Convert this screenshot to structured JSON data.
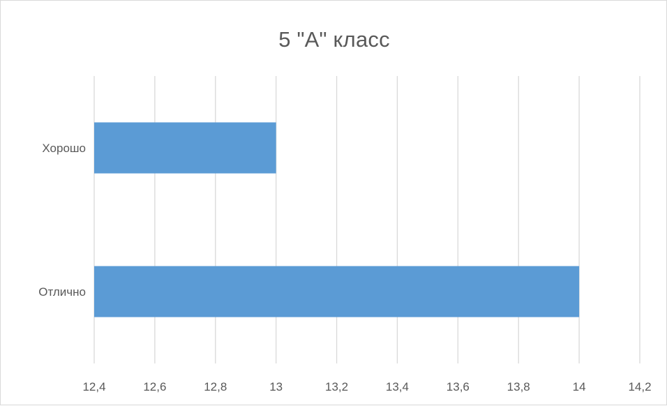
{
  "chart_data": {
    "type": "bar",
    "orientation": "horizontal",
    "title": "5 \"А\" класс",
    "categories": [
      "Хорошо",
      "Отлично"
    ],
    "values": [
      13,
      14
    ],
    "xlim": [
      12.4,
      14.2
    ],
    "x_ticks": [
      12.4,
      12.6,
      12.8,
      13.0,
      13.2,
      13.4,
      13.6,
      13.8,
      14.0,
      14.2
    ],
    "x_tick_labels": [
      "12,4",
      "12,6",
      "12,8",
      "13",
      "13,2",
      "13,4",
      "13,6",
      "13,8",
      "14",
      "14,2"
    ],
    "xlabel": "",
    "ylabel": "",
    "grid": "vertical",
    "legend": "none",
    "bar_color": "#5b9bd5",
    "grid_color": "#d9d9d9",
    "text_color": "#595959"
  }
}
